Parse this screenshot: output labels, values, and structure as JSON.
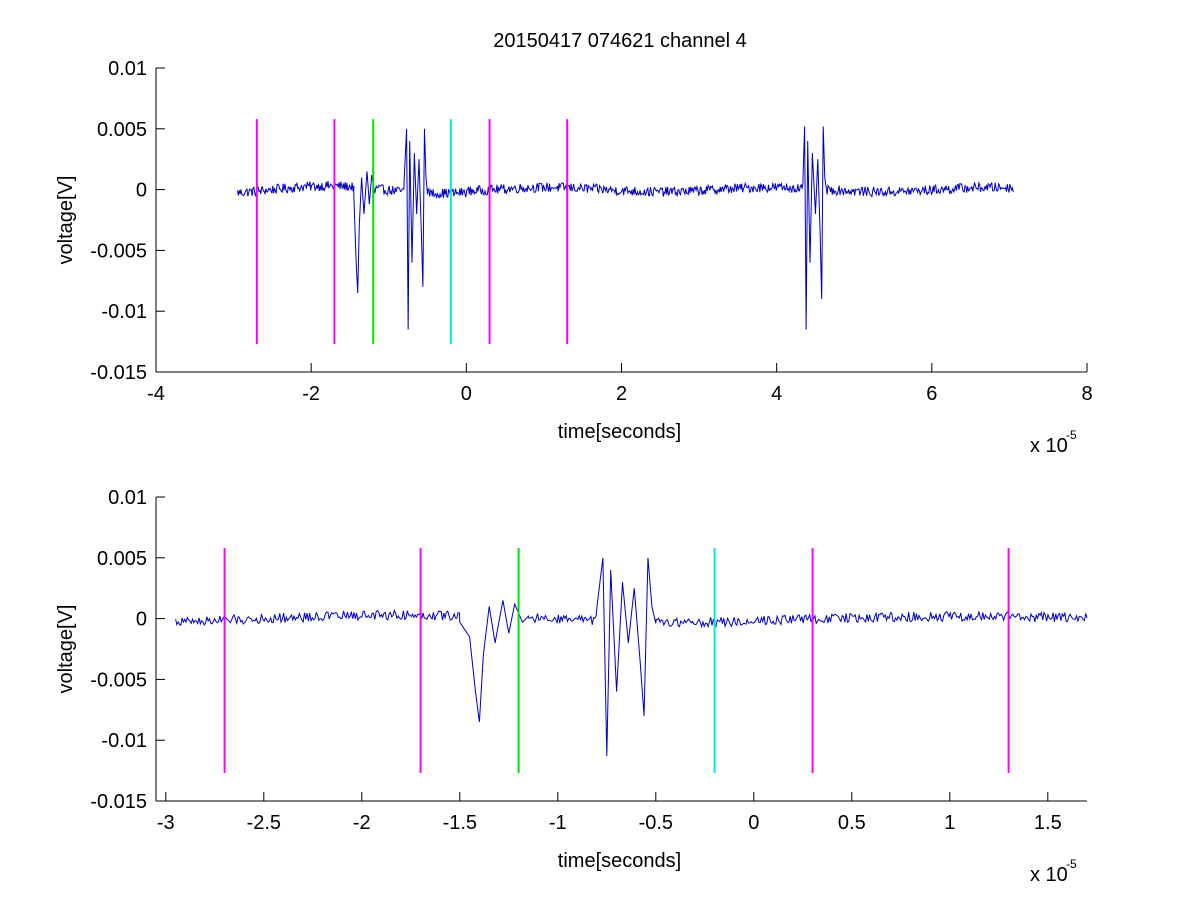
{
  "figure": {
    "title": "20150417 074621 channel 4"
  },
  "colors": {
    "trace": "#0000c0",
    "magenta": "#ff00ff",
    "green": "#00e000",
    "cyan": "#00e8e8",
    "axes": "#000000",
    "background": "#ffffff"
  },
  "chart_data": [
    {
      "type": "line",
      "xlabel": "time[seconds]",
      "ylabel": "voltage[V]",
      "x_exponent_base": "x 10",
      "x_exponent_power": "-5",
      "xlim": [
        -4,
        8
      ],
      "ylim": [
        -0.015,
        0.01
      ],
      "xticks": [
        -4,
        -2,
        0,
        2,
        4,
        6,
        8
      ],
      "xtick_labels": [
        "-4",
        "-2",
        "0",
        "2",
        "4",
        "6",
        "8"
      ],
      "yticks": [
        -0.015,
        -0.01,
        -0.005,
        0,
        0.005,
        0.01
      ],
      "ytick_labels": [
        "-0.015",
        "-0.01",
        "-0.005",
        "0",
        "0.005",
        "0.01"
      ],
      "grid": false,
      "legend": "none",
      "signal": {
        "x_range": [
          -2.95,
          7.05
        ],
        "baseline": 0,
        "noise_amplitude": 0.0004,
        "bursts": [
          {
            "x": [
              -1.45,
              -1.42,
              -1.4,
              -1.38,
              -1.35,
              -1.32,
              -1.28,
              -1.25,
              -1.22,
              -1.18
            ],
            "y": [
              -0.0005,
              -0.006,
              -0.0085,
              -0.003,
              0.001,
              -0.002,
              0.0015,
              -0.0012,
              0.0012,
              -0.0003
            ]
          },
          {
            "x": [
              -0.8,
              -0.77,
              -0.75,
              -0.73,
              -0.7,
              -0.67,
              -0.64,
              -0.61,
              -0.58,
              -0.56,
              -0.54,
              -0.52,
              -0.5
            ],
            "y": [
              0.001,
              0.005,
              -0.0115,
              0.004,
              -0.006,
              0.003,
              -0.002,
              0.0025,
              -0.0035,
              -0.008,
              0.005,
              0.001,
              -0.0004
            ]
          },
          {
            "x": [
              4.34,
              4.36,
              4.38,
              4.4,
              4.43,
              4.46,
              4.5,
              4.53,
              4.56,
              4.58,
              4.6,
              4.62,
              4.65
            ],
            "y": [
              0.001,
              0.0052,
              -0.0115,
              0.004,
              -0.006,
              0.003,
              -0.002,
              0.0025,
              -0.0035,
              -0.009,
              0.0052,
              0.001,
              -0.0004
            ]
          }
        ]
      },
      "markers": [
        {
          "x": -2.7,
          "color": "magenta",
          "ymin": -0.0127,
          "ymax": 0.0058
        },
        {
          "x": -1.7,
          "color": "magenta",
          "ymin": -0.0127,
          "ymax": 0.0058
        },
        {
          "x": -1.2,
          "color": "green",
          "ymin": -0.0127,
          "ymax": 0.0058
        },
        {
          "x": -0.2,
          "color": "cyan",
          "ymin": -0.0127,
          "ymax": 0.0058
        },
        {
          "x": 0.3,
          "color": "magenta",
          "ymin": -0.0127,
          "ymax": 0.0058
        },
        {
          "x": 1.3,
          "color": "magenta",
          "ymin": -0.0127,
          "ymax": 0.0058
        }
      ]
    },
    {
      "type": "line",
      "xlabel": "time[seconds]",
      "ylabel": "voltage[V]",
      "x_exponent_base": "x 10",
      "x_exponent_power": "-5",
      "xlim": [
        -3.05,
        1.7
      ],
      "ylim": [
        -0.015,
        0.01
      ],
      "xticks": [
        -3,
        -2.5,
        -2,
        -1.5,
        -1,
        -0.5,
        0,
        0.5,
        1,
        1.5
      ],
      "xtick_labels": [
        "-3",
        "-2.5",
        "-2",
        "-1.5",
        "-1",
        "-0.5",
        "0",
        "0.5",
        "1",
        "1.5"
      ],
      "yticks": [
        -0.015,
        -0.01,
        -0.005,
        0,
        0.005,
        0.01
      ],
      "ytick_labels": [
        "-0.015",
        "-0.01",
        "-0.005",
        "0",
        "0.005",
        "0.01"
      ],
      "grid": false,
      "legend": "none",
      "signal": {
        "x_range": [
          -2.95,
          1.7
        ],
        "baseline": 0,
        "noise_amplitude": 0.0004,
        "bursts": [
          {
            "x": [
              -1.5,
              -1.45,
              -1.42,
              -1.4,
              -1.38,
              -1.35,
              -1.32,
              -1.28,
              -1.25,
              -1.22,
              -1.18,
              -1.15
            ],
            "y": [
              -0.0003,
              -0.0015,
              -0.006,
              -0.0085,
              -0.003,
              0.001,
              -0.002,
              0.0015,
              -0.0012,
              0.0012,
              -0.0003,
              0.0002
            ]
          },
          {
            "x": [
              -0.8,
              -0.77,
              -0.75,
              -0.73,
              -0.7,
              -0.67,
              -0.64,
              -0.61,
              -0.58,
              -0.56,
              -0.54,
              -0.52,
              -0.5
            ],
            "y": [
              0.001,
              0.005,
              -0.0113,
              0.004,
              -0.006,
              0.003,
              -0.002,
              0.0025,
              -0.0035,
              -0.008,
              0.005,
              0.001,
              -0.0004
            ]
          }
        ]
      },
      "markers": [
        {
          "x": -2.7,
          "color": "magenta",
          "ymin": -0.0127,
          "ymax": 0.0058
        },
        {
          "x": -1.7,
          "color": "magenta",
          "ymin": -0.0127,
          "ymax": 0.0058
        },
        {
          "x": -1.2,
          "color": "green",
          "ymin": -0.0127,
          "ymax": 0.0058
        },
        {
          "x": -0.2,
          "color": "cyan",
          "ymin": -0.0127,
          "ymax": 0.0058
        },
        {
          "x": 0.3,
          "color": "magenta",
          "ymin": -0.0127,
          "ymax": 0.0058
        },
        {
          "x": 1.3,
          "color": "magenta",
          "ymin": -0.0127,
          "ymax": 0.0058
        }
      ]
    }
  ]
}
